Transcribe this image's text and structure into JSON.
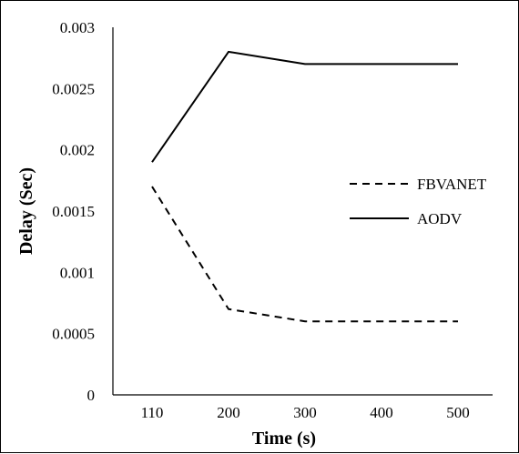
{
  "chart_data": {
    "type": "line",
    "categories": [
      "110",
      "200",
      "300",
      "400",
      "500"
    ],
    "series": [
      {
        "name": "FBVANET",
        "values": [
          0.0017,
          0.0007,
          0.0006,
          0.0006,
          0.0006
        ],
        "line_style": "dashed",
        "color": "#000000"
      },
      {
        "name": "AODV",
        "values": [
          0.0019,
          0.0028,
          0.0027,
          0.0027,
          0.0027
        ],
        "line_style": "solid",
        "color": "#000000"
      }
    ],
    "yticks": [
      "0",
      "0.0005",
      "0.001",
      "0.0015",
      "0.002",
      "0.0025",
      "0.003"
    ],
    "ylim": [
      0,
      0.003
    ],
    "xlabel": "Time (s)",
    "ylabel": "Delay (Sec)",
    "title": "",
    "grid": false,
    "legend_position": "right"
  }
}
